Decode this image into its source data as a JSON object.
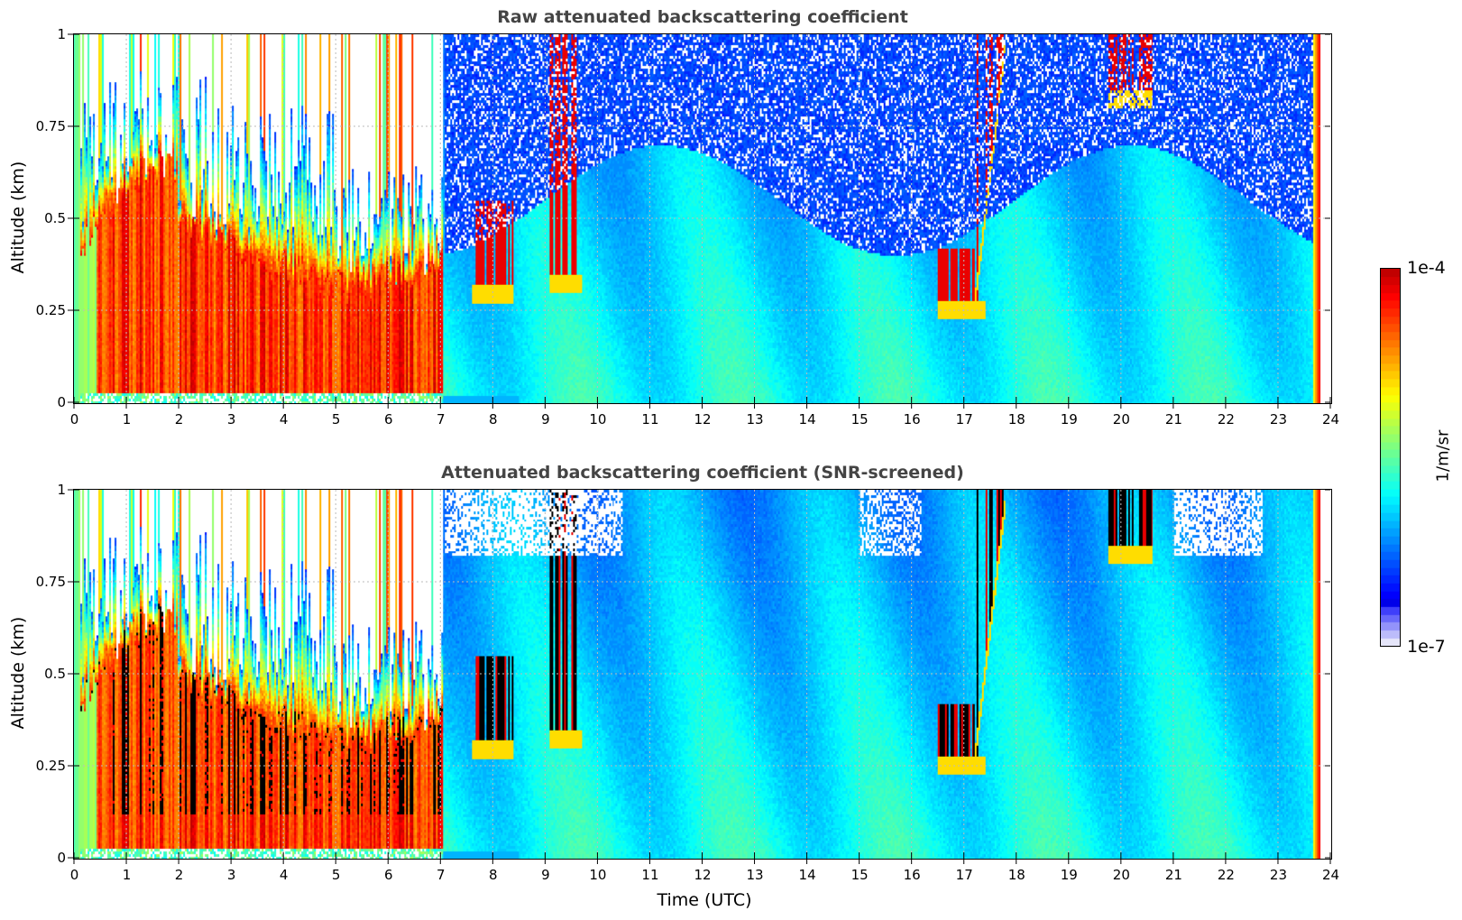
{
  "chart_data": [
    {
      "type": "heatmap",
      "title": "Raw attenuated backscattering coefficient",
      "xlabel": "Time (UTC)",
      "ylabel": "Altitude (km)",
      "xlim": [
        0,
        24
      ],
      "ylim": [
        0,
        1
      ],
      "x_ticks": [
        "0",
        "1",
        "2",
        "3",
        "4",
        "5",
        "6",
        "7",
        "8",
        "9",
        "10",
        "11",
        "12",
        "13",
        "14",
        "15",
        "16",
        "17",
        "18",
        "19",
        "20",
        "21",
        "22",
        "23",
        "24"
      ],
      "y_ticks": [
        "0",
        "0.25",
        "0.5",
        "0.75",
        "1"
      ],
      "grid": true,
      "data_time_range": [
        0,
        23.8
      ],
      "colormap": "jet",
      "screened": false,
      "features": [
        {
          "name": "dense boundary layer aerosol",
          "time": [
            0,
            7
          ],
          "altitude": [
            0,
            0.6
          ],
          "level": "high"
        },
        {
          "name": "clear sky background",
          "time": [
            7.1,
            23.8
          ],
          "altitude": [
            0,
            1
          ],
          "level": "low"
        },
        {
          "name": "cloud",
          "time": [
            16.5,
            17.8
          ],
          "altitude": [
            0.28,
            1
          ],
          "level": "high"
        },
        {
          "name": "cloud",
          "time": [
            19.7,
            20.6
          ],
          "altitude": [
            0.85,
            1
          ],
          "level": "high"
        },
        {
          "name": "cloud",
          "time": [
            7.5,
            8.5
          ],
          "altitude": [
            0.3,
            0.55
          ],
          "level": "high"
        }
      ]
    },
    {
      "type": "heatmap",
      "title": "Attenuated backscattering coefficient (SNR-screened)",
      "xlabel": "Time (UTC)",
      "ylabel": "Altitude (km)",
      "xlim": [
        0,
        24
      ],
      "ylim": [
        0,
        1
      ],
      "x_ticks": [
        "0",
        "1",
        "2",
        "3",
        "4",
        "5",
        "6",
        "7",
        "8",
        "9",
        "10",
        "11",
        "12",
        "13",
        "14",
        "15",
        "16",
        "17",
        "18",
        "19",
        "20",
        "21",
        "22",
        "23",
        "24"
      ],
      "y_ticks": [
        "0",
        "0.25",
        "0.5",
        "0.75",
        "1"
      ],
      "grid": true,
      "data_time_range": [
        0,
        23.8
      ],
      "colormap": "jet",
      "screened": true
    }
  ],
  "colorbar": {
    "max_label": "1e-4",
    "min_label": "1e-7",
    "label": "1/m/sr",
    "vmin": 1e-07,
    "vmax": 0.0001,
    "scale": "log"
  }
}
